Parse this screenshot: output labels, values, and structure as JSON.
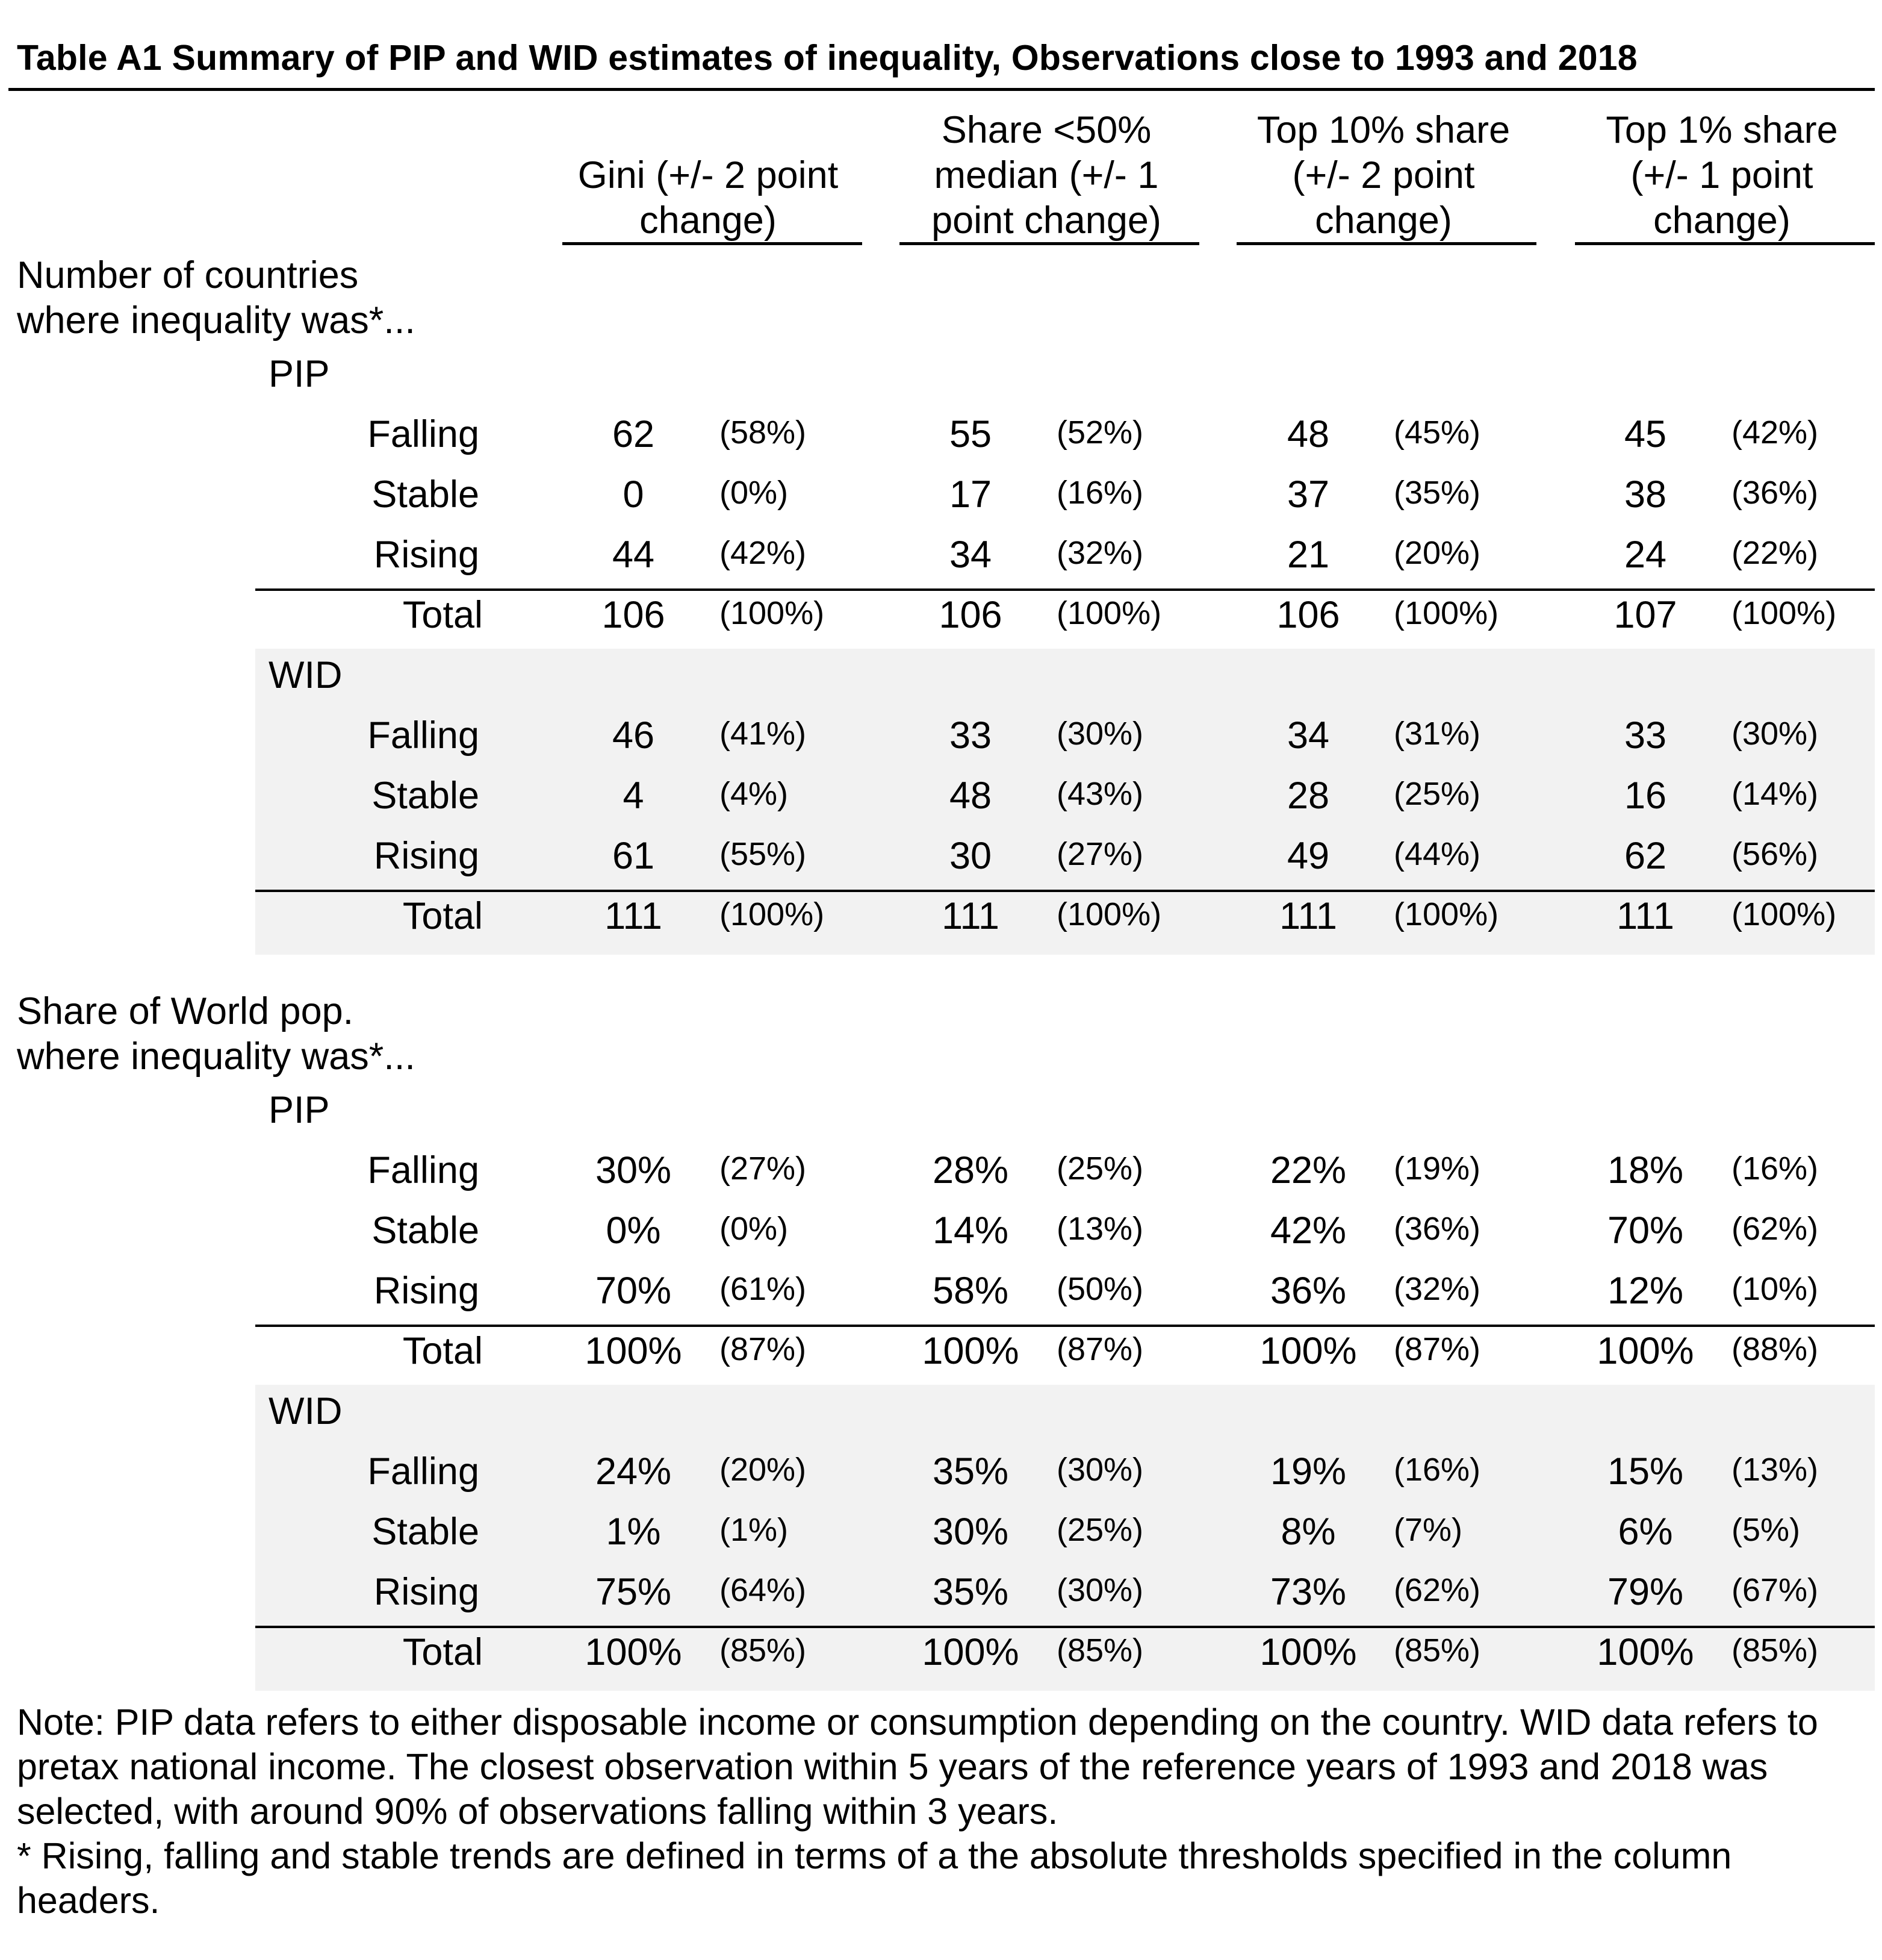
{
  "title": "Table A1 Summary of PIP and WID estimates of inequality, Observations close to 1993 and 2018",
  "columns": [
    [
      "Gini (+/- 2 point",
      "change)"
    ],
    [
      "Share <50%",
      "median (+/- 1",
      "point change)"
    ],
    [
      "Top 10% share",
      "(+/- 2 point",
      "change)"
    ],
    [
      "Top 1% share",
      "(+/- 1 point",
      "change)"
    ]
  ],
  "sections": [
    {
      "heading": [
        "Number of countries",
        "where inequality was*..."
      ],
      "groups": [
        {
          "name": "PIP",
          "rows": [
            {
              "label": "Falling",
              "cells": [
                [
                  "62",
                  "(58%)"
                ],
                [
                  "55",
                  "(52%)"
                ],
                [
                  "48",
                  "(45%)"
                ],
                [
                  "45",
                  "(42%)"
                ]
              ]
            },
            {
              "label": "Stable",
              "cells": [
                [
                  "0",
                  "(0%)"
                ],
                [
                  "17",
                  "(16%)"
                ],
                [
                  "37",
                  "(35%)"
                ],
                [
                  "38",
                  "(36%)"
                ]
              ]
            },
            {
              "label": "Rising",
              "cells": [
                [
                  "44",
                  "(42%)"
                ],
                [
                  "34",
                  "(32%)"
                ],
                [
                  "21",
                  "(20%)"
                ],
                [
                  "24",
                  "(22%)"
                ]
              ]
            },
            {
              "label": "Total",
              "cells": [
                [
                  "106",
                  "(100%)"
                ],
                [
                  "106",
                  "(100%)"
                ],
                [
                  "106",
                  "(100%)"
                ],
                [
                  "107",
                  "(100%)"
                ]
              ]
            }
          ]
        },
        {
          "name": "WID",
          "rows": [
            {
              "label": "Falling",
              "cells": [
                [
                  "46",
                  "(41%)"
                ],
                [
                  "33",
                  "(30%)"
                ],
                [
                  "34",
                  "(31%)"
                ],
                [
                  "33",
                  "(30%)"
                ]
              ]
            },
            {
              "label": "Stable",
              "cells": [
                [
                  "4",
                  "(4%)"
                ],
                [
                  "48",
                  "(43%)"
                ],
                [
                  "28",
                  "(25%)"
                ],
                [
                  "16",
                  "(14%)"
                ]
              ]
            },
            {
              "label": "Rising",
              "cells": [
                [
                  "61",
                  "(55%)"
                ],
                [
                  "30",
                  "(27%)"
                ],
                [
                  "49",
                  "(44%)"
                ],
                [
                  "62",
                  "(56%)"
                ]
              ]
            },
            {
              "label": "Total",
              "cells": [
                [
                  "111",
                  "(100%)"
                ],
                [
                  "111",
                  "(100%)"
                ],
                [
                  "111",
                  "(100%)"
                ],
                [
                  "111",
                  "(100%)"
                ]
              ]
            }
          ]
        }
      ]
    },
    {
      "heading": [
        "Share of World pop.",
        "where inequality was*..."
      ],
      "groups": [
        {
          "name": "PIP",
          "rows": [
            {
              "label": "Falling",
              "cells": [
                [
                  "30%",
                  "(27%)"
                ],
                [
                  "28%",
                  "(25%)"
                ],
                [
                  "22%",
                  "(19%)"
                ],
                [
                  "18%",
                  "(16%)"
                ]
              ]
            },
            {
              "label": "Stable",
              "cells": [
                [
                  "0%",
                  "(0%)"
                ],
                [
                  "14%",
                  "(13%)"
                ],
                [
                  "42%",
                  "(36%)"
                ],
                [
                  "70%",
                  "(62%)"
                ]
              ]
            },
            {
              "label": "Rising",
              "cells": [
                [
                  "70%",
                  "(61%)"
                ],
                [
                  "58%",
                  "(50%)"
                ],
                [
                  "36%",
                  "(32%)"
                ],
                [
                  "12%",
                  "(10%)"
                ]
              ]
            },
            {
              "label": "Total",
              "cells": [
                [
                  "100%",
                  "(87%)"
                ],
                [
                  "100%",
                  "(87%)"
                ],
                [
                  "100%",
                  "(87%)"
                ],
                [
                  "100%",
                  "(88%)"
                ]
              ]
            }
          ]
        },
        {
          "name": "WID",
          "rows": [
            {
              "label": "Falling",
              "cells": [
                [
                  "24%",
                  "(20%)"
                ],
                [
                  "35%",
                  "(30%)"
                ],
                [
                  "19%",
                  "(16%)"
                ],
                [
                  "15%",
                  "(13%)"
                ]
              ]
            },
            {
              "label": "Stable",
              "cells": [
                [
                  "1%",
                  "(1%)"
                ],
                [
                  "30%",
                  "(25%)"
                ],
                [
                  "8%",
                  "(7%)"
                ],
                [
                  "6%",
                  "(5%)"
                ]
              ]
            },
            {
              "label": "Rising",
              "cells": [
                [
                  "75%",
                  "(64%)"
                ],
                [
                  "35%",
                  "(30%)"
                ],
                [
                  "73%",
                  "(62%)"
                ],
                [
                  "79%",
                  "(67%)"
                ]
              ]
            },
            {
              "label": "Total",
              "cells": [
                [
                  "100%",
                  "(85%)"
                ],
                [
                  "100%",
                  "(85%)"
                ],
                [
                  "100%",
                  "(85%)"
                ],
                [
                  "100%",
                  "(85%)"
                ]
              ]
            }
          ]
        }
      ]
    }
  ],
  "notes": [
    "Note: PIP data refers to either disposable income or consumption depending on the country. WID data refers to pretax national income. The closest observation within 5 years of the reference years of 1993 and 2018 was selected, with around 90% of observations falling within 3 years.",
    "* Rising, falling and stable trends are defined in terms of a the absolute thresholds specified in the column headers."
  ]
}
